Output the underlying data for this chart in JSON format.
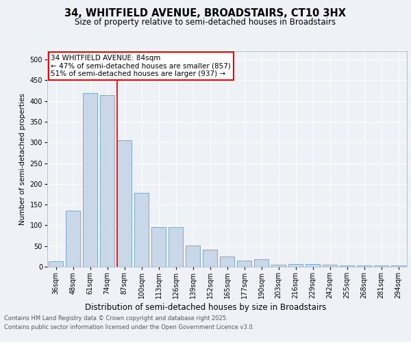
{
  "title_line1": "34, WHITFIELD AVENUE, BROADSTAIRS, CT10 3HX",
  "title_line2": "Size of property relative to semi-detached houses in Broadstairs",
  "xlabel": "Distribution of semi-detached houses by size in Broadstairs",
  "ylabel": "Number of semi-detached properties",
  "categories": [
    "36sqm",
    "48sqm",
    "61sqm",
    "74sqm",
    "87sqm",
    "100sqm",
    "113sqm",
    "126sqm",
    "139sqm",
    "152sqm",
    "165sqm",
    "177sqm",
    "190sqm",
    "203sqm",
    "216sqm",
    "229sqm",
    "242sqm",
    "255sqm",
    "268sqm",
    "281sqm",
    "294sqm"
  ],
  "values": [
    13,
    135,
    420,
    415,
    305,
    178,
    95,
    95,
    52,
    42,
    25,
    15,
    18,
    5,
    7,
    7,
    5,
    3,
    3,
    3,
    3
  ],
  "bar_color": "#c8d8e8",
  "bar_edge_color": "#7fa8c8",
  "red_line_x": 3.575,
  "annotation_line1": "34 WHITFIELD AVENUE: 84sqm",
  "annotation_line2": "← 47% of semi-detached houses are smaller (857)",
  "annotation_line3": "51% of semi-detached houses are larger (937) →",
  "ylim": [
    0,
    520
  ],
  "yticks": [
    0,
    50,
    100,
    150,
    200,
    250,
    300,
    350,
    400,
    450,
    500
  ],
  "footer_line1": "Contains HM Land Registry data © Crown copyright and database right 2025.",
  "footer_line2": "Contains public sector information licensed under the Open Government Licence v3.0.",
  "bg_color": "#eef2f6",
  "plot_bg_color": "#eef2f6",
  "title1_fontsize": 10.5,
  "title2_fontsize": 8.5,
  "ylabel_fontsize": 7.5,
  "xlabel_fontsize": 8.5,
  "tick_fontsize": 7,
  "annotation_fontsize": 7.5,
  "footer_fontsize": 6
}
